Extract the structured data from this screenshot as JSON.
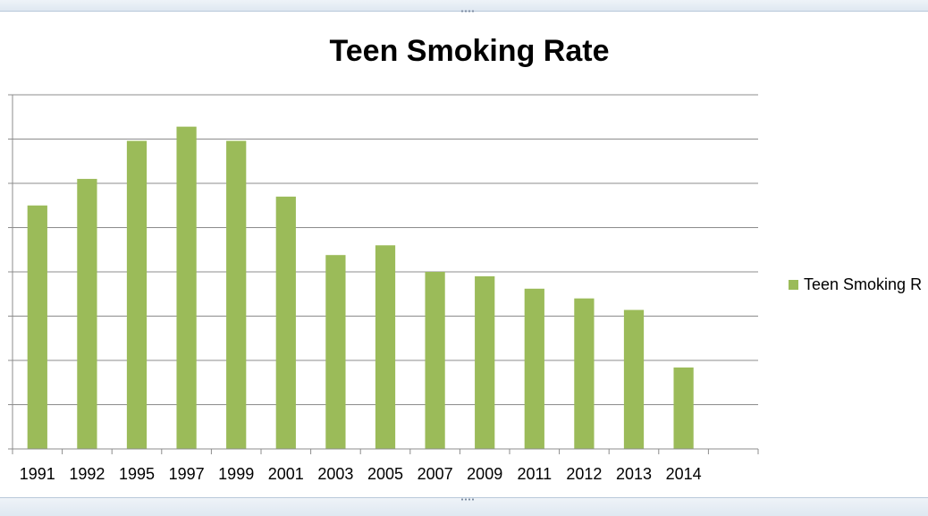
{
  "chart_data": {
    "type": "bar",
    "title": "Teen Smoking Rate",
    "categories": [
      "1991",
      "1992",
      "1995",
      "1997",
      "1999",
      "2001",
      "2003",
      "2005",
      "2007",
      "2009",
      "2011",
      "2012",
      "2013",
      "2014"
    ],
    "series": [
      {
        "name": "Teen Smoking R",
        "values": [
          27.5,
          30.5,
          34.8,
          36.4,
          34.8,
          28.5,
          21.9,
          23.0,
          20.0,
          19.5,
          18.1,
          17.0,
          15.7,
          9.2
        ],
        "color": "#9bbb59"
      }
    ],
    "ylim": [
      0,
      40
    ],
    "y_major_step": 5,
    "y_tick_labels_visible": false,
    "grid": true,
    "legend_position": "right"
  }
}
